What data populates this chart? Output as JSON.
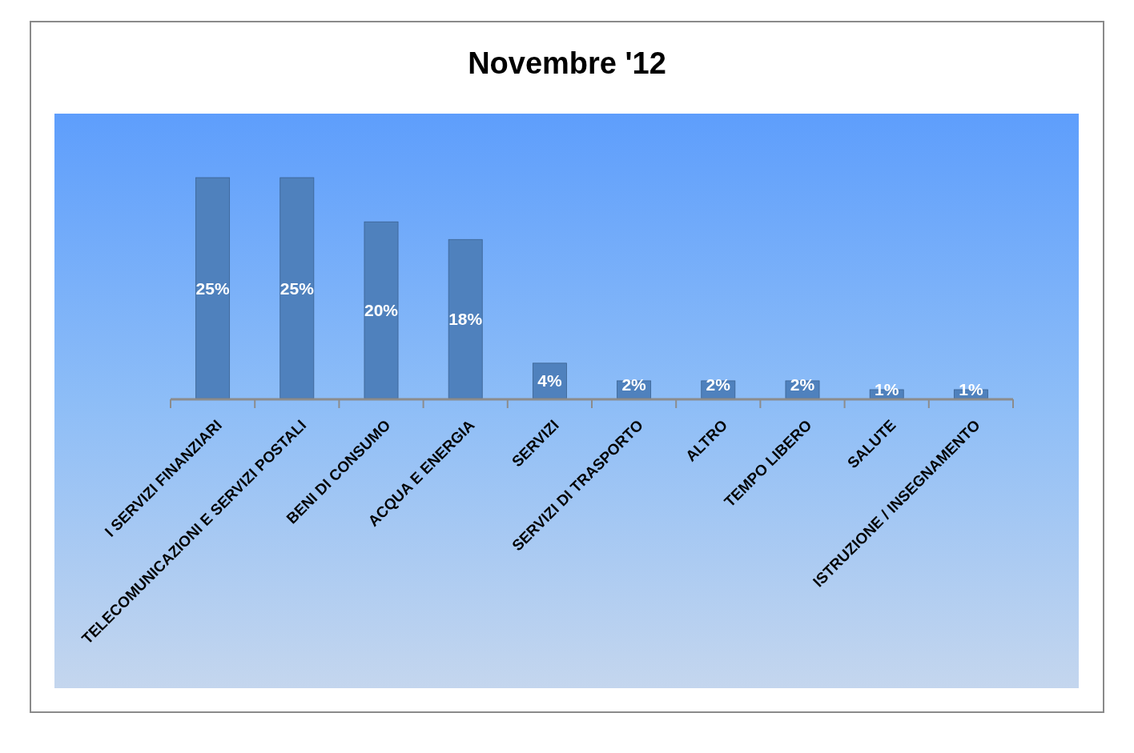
{
  "chart_data": {
    "type": "bar",
    "title": "Novembre '12",
    "categories": [
      "I SERVIZI FINANZIARI",
      "TELECOMUNICAZIONI E SERVIZI POSTALI",
      "BENI DI CONSUMO",
      "ACQUA E ENERGIA",
      "SERVIZI",
      "SERVIZI DI TRASPORTO",
      "ALTRO",
      "TEMPO LIBERO",
      "SALUTE",
      "ISTRUZIONE / INSEGNAMENTO"
    ],
    "values": [
      25,
      25,
      20,
      18,
      4,
      2,
      2,
      2,
      1,
      1
    ],
    "color": "#4f81bd",
    "value_labels": [
      "25%",
      "25%",
      "20%",
      "18%",
      "4%",
      "2%",
      "2%",
      "2%",
      "1%",
      "1%"
    ]
  }
}
